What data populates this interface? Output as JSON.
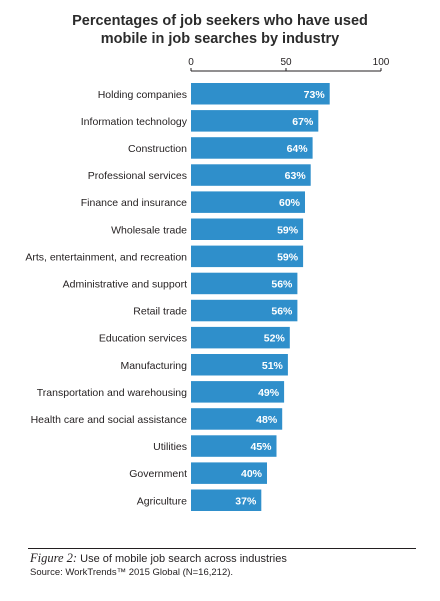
{
  "chart_data": {
    "type": "bar",
    "orientation": "horizontal",
    "title_lines": [
      "Percentages of job seekers who have used",
      "mobile in job searches by industry"
    ],
    "categories": [
      "Holding companies",
      "Information technology",
      "Construction",
      "Professional services",
      "Finance and insurance",
      "Wholesale trade",
      "Arts, entertainment, and recreation",
      "Administrative and support",
      "Retail trade",
      "Education services",
      "Manufacturing",
      "Transportation and warehousing",
      "Health care and social assistance",
      "Utilities",
      "Government",
      "Agriculture"
    ],
    "values": [
      73,
      67,
      64,
      63,
      60,
      59,
      59,
      56,
      56,
      52,
      51,
      49,
      48,
      45,
      40,
      37
    ],
    "value_labels": [
      "73%",
      "67%",
      "64%",
      "63%",
      "60%",
      "59%",
      "59%",
      "56%",
      "56%",
      "52%",
      "51%",
      "49%",
      "48%",
      "45%",
      "40%",
      "37%"
    ],
    "xlim": [
      0,
      100
    ],
    "x_ticks": [
      0,
      50,
      100
    ],
    "x_tick_labels": [
      "0",
      "50",
      "100"
    ],
    "axis_position": "top",
    "grid": false,
    "bar_color": "#2f8fcb",
    "label_color": "#ffffff"
  },
  "caption": {
    "figure_label": "Figure 2:",
    "text": " Use of mobile job search across industries",
    "source": "Source: WorkTrends™ 2015 Global (N=16,212)."
  }
}
